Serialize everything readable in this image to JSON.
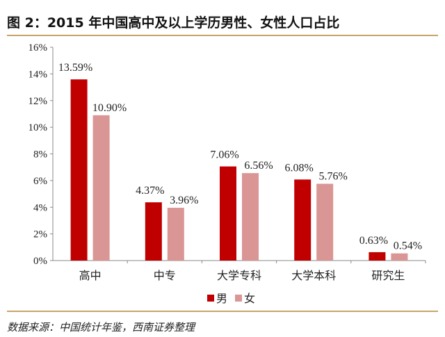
{
  "title": "图 2：2015 年中国高中及以上学历男性、女性人口占比",
  "source": "数据来源：中国统计年鉴，西南证券整理",
  "chart_data": {
    "type": "bar",
    "categories": [
      "高中",
      "中专",
      "大学专科",
      "大学本科",
      "研究生"
    ],
    "series": [
      {
        "name": "男",
        "values": [
          13.59,
          4.37,
          7.06,
          6.08,
          0.63
        ],
        "labels": [
          "13.59%",
          "4.37%",
          "7.06%",
          "6.08%",
          "0.63%"
        ],
        "color": "#c00000"
      },
      {
        "name": "女",
        "values": [
          10.9,
          3.96,
          6.56,
          5.76,
          0.54
        ],
        "labels": [
          "10.90%",
          "3.96%",
          "6.56%",
          "5.76%",
          "0.54%"
        ],
        "color": "#d99694"
      }
    ],
    "ylim": [
      0,
      16
    ],
    "yticks": [
      "0%",
      "2%",
      "4%",
      "6%",
      "8%",
      "10%",
      "12%",
      "14%",
      "16%"
    ],
    "grid": false,
    "legend": "bottom"
  }
}
